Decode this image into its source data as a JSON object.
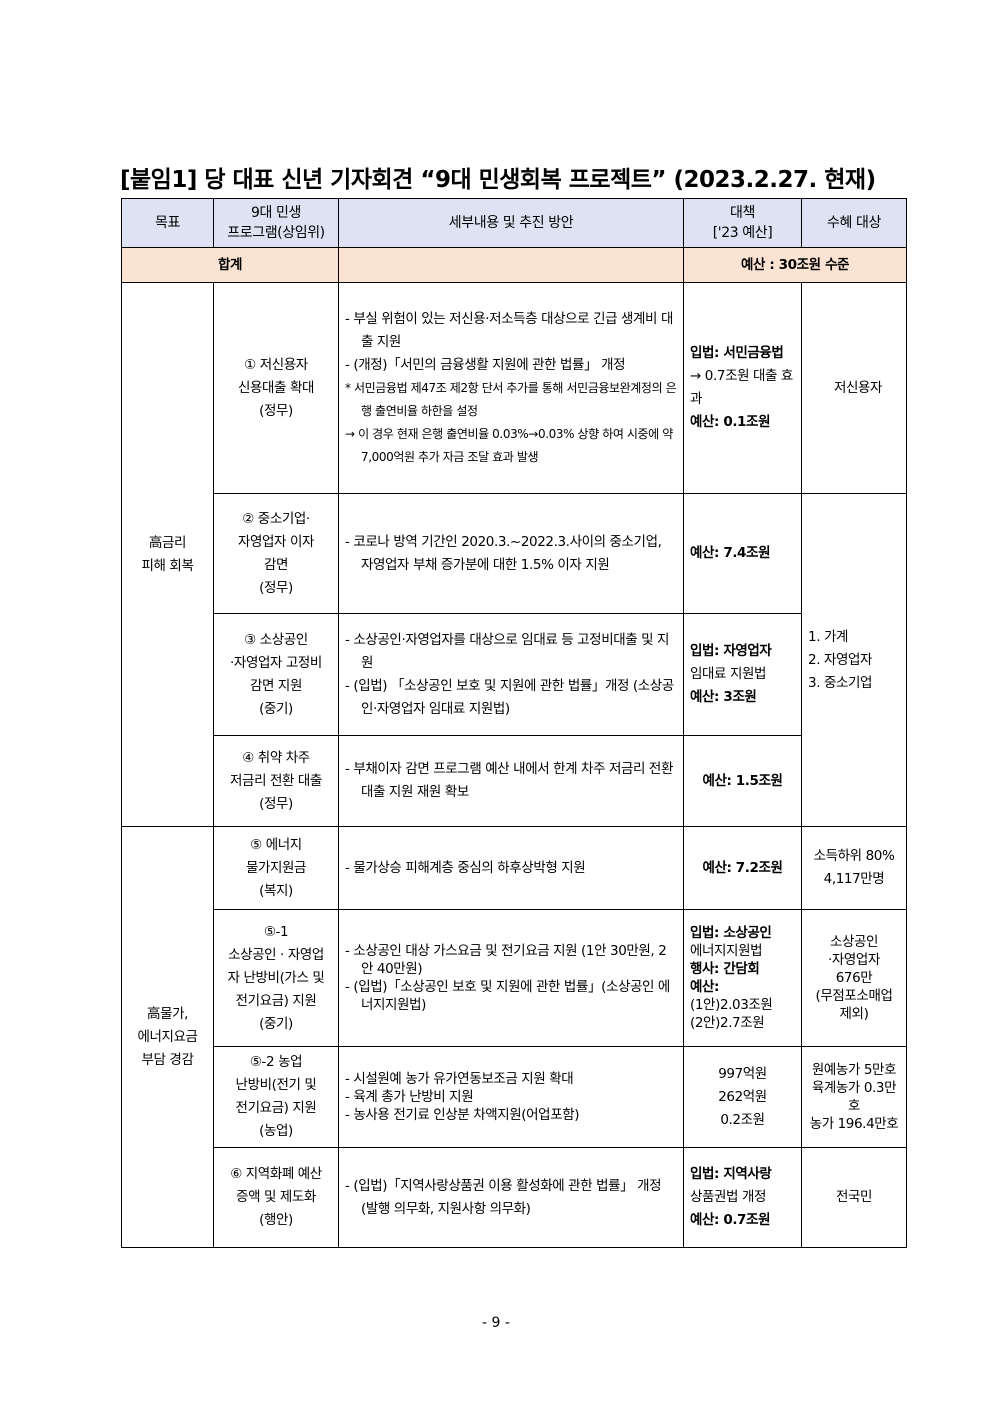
{
  "title": "[붙임1] 당 대표 신년 기자회견 “9대 민생회복 프로젝트” (2023.2.27. 현재)",
  "header": {
    "goal": "목표",
    "program": [
      "9대 민생",
      "프로그램(상임위)"
    ],
    "detail": "세부내용 및 추진 방안",
    "measure": [
      "대책",
      "['23 예산]"
    ],
    "beneficiary": "수혜 대상"
  },
  "total": {
    "label": "합계",
    "budget": "예산 : 30조원 수준"
  },
  "groups": [
    {
      "goal": [
        "高금리",
        "피해 회복"
      ]
    },
    {
      "goal": [
        "高물가,",
        "에너지요금",
        "부담 경감"
      ]
    }
  ],
  "rows": [
    {
      "program": [
        "① 저신용자",
        "신용대출 확대",
        "(정무)"
      ],
      "detail": [
        "- 부실 위험이 있는 저신용·저소득층 대상으로 긴급 생계비 대출 지원",
        "- (개정)「서민의 금융생활 지원에 관한 법률」 개정",
        "* 서민금융법 제47조 제2항 단서 추가를 통해 서민금융보완계정의 은행 출연비율 하한을 설정",
        "→ 이 경우 현재 은행 출연비율 0.03%→0.03% 상향 하여 시중에 약 7,000억원 추가 자금 조달 효과 발생"
      ],
      "measure": [
        "입법: 서민금융법",
        "→ 0.7조원 대출 효과",
        "예산: 0.1조원"
      ],
      "beneficiary": [
        "저신용자"
      ]
    },
    {
      "program": [
        "② 중소기업·",
        "자영업자 이자",
        "감면",
        "(정무)"
      ],
      "detail": [
        "- 코로나 방역 기간인 2020.3.~2022.3.사이의 중소기업, 자영업자 부채 증가분에 대한 1.5% 이자 지원"
      ],
      "measure": [
        "예산: 7.4조원"
      ],
      "beneficiary": [
        "1. 가계",
        "2. 자영업자",
        "3. 중소기업"
      ]
    },
    {
      "program": [
        "③ 소상공인",
        "·자영업자 고정비",
        "감면 지원",
        "(중기)"
      ],
      "detail": [
        "- 소상공인·자영업자를 대상으로 임대료 등 고정비대출 및 지원",
        "- (입법) 「소상공인 보호 및 지원에 관한 법률」개정 (소상공인·자영업자 임대료 지원법)"
      ],
      "measure": [
        "입법: 자영업자",
        "임대료 지원법",
        "예산: 3조원"
      ]
    },
    {
      "program": [
        "④ 취약 차주",
        "저금리 전환 대출",
        "(정무)"
      ],
      "detail": [
        "- 부채이자 감면 프로그램 예산 내에서 한계 차주 저금리 전환 대출 지원 재원 확보"
      ],
      "measure": [
        "예산: 1.5조원"
      ]
    },
    {
      "program": [
        "⑤ 에너지",
        "물가지원금",
        "(복지)"
      ],
      "detail": [
        "- 물가상승 피해계층 중심의 하후상박형 지원"
      ],
      "measure": [
        "예산: 7.2조원"
      ],
      "beneficiary": [
        "소득하위 80%",
        "4,117만명"
      ]
    },
    {
      "program": [
        "⑤-1",
        "소상공인 · 자영업",
        "자 난방비(가스 및",
        "전기요금) 지원",
        "(중기)"
      ],
      "detail": [
        "- 소상공인 대상 가스요금 및 전기요금 지원 (1안 30만원, 2안 40만원)",
        "- (입법)「소상공인 보호 및 지원에 관한 법률」(소상공인 에너지지원법)"
      ],
      "measure": [
        "입법: 소상공인",
        "에너지지원법",
        "행사: 간담회",
        "예산:",
        "(1안)2.03조원",
        "(2안)2.7조원"
      ],
      "beneficiary": [
        "소상공인",
        "·자영업자",
        "676만",
        "(무점포소매업",
        "제외)"
      ]
    },
    {
      "program": [
        "⑤-2 농업",
        "난방비(전기 및",
        "전기요금) 지원",
        "(농업)"
      ],
      "detail": [
        "- 시설원예 농가 유가연동보조금 지원 확대",
        "- 육계 총가 난방비 지원",
        "- 농사용 전기료 인상분 차액지원(어업포함)"
      ],
      "measure": [
        "997억원",
        "262억원",
        "0.2조원"
      ],
      "beneficiary": [
        "원예농가 5만호",
        "육계농가 0.3만호",
        "농가 196.4만호"
      ]
    },
    {
      "program": [
        "⑥ 지역화폐 예산",
        "증액 및 제도화",
        "(행안)"
      ],
      "detail": [
        "- (입법)「지역사랑상품권 이용 활성화에 관한 법률」 개정 (발행 의무화, 지원사항 의무화)"
      ],
      "measure": [
        "입법: 지역사랑",
        "상품권법 개정",
        "예산: 0.7조원"
      ],
      "beneficiary": [
        "전국민"
      ]
    }
  ],
  "page_number": "- 9 -"
}
